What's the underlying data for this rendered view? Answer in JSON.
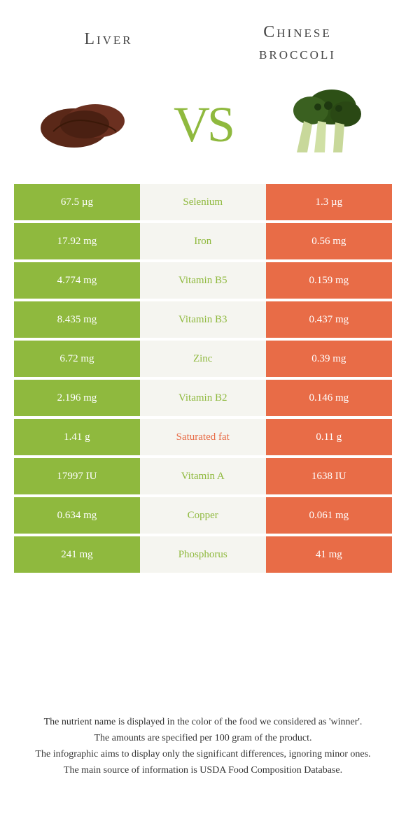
{
  "colors": {
    "left_bg": "#8fb93e",
    "right_bg": "#e86c47",
    "mid_bg": "#f5f5f0",
    "left_wins_text": "#8fb93e",
    "right_wins_text": "#e86c47",
    "vs": "#8fb93e"
  },
  "header": {
    "left_title": "Liver",
    "right_title_line1": "Chinese",
    "right_title_line2": "broccoli",
    "vs": "VS"
  },
  "rows": [
    {
      "nutrient": "Selenium",
      "left": "67.5 µg",
      "right": "1.3 µg",
      "winner": "left"
    },
    {
      "nutrient": "Iron",
      "left": "17.92 mg",
      "right": "0.56 mg",
      "winner": "left"
    },
    {
      "nutrient": "Vitamin B5",
      "left": "4.774 mg",
      "right": "0.159 mg",
      "winner": "left"
    },
    {
      "nutrient": "Vitamin B3",
      "left": "8.435 mg",
      "right": "0.437 mg",
      "winner": "left"
    },
    {
      "nutrient": "Zinc",
      "left": "6.72 mg",
      "right": "0.39 mg",
      "winner": "left"
    },
    {
      "nutrient": "Vitamin B2",
      "left": "2.196 mg",
      "right": "0.146 mg",
      "winner": "left"
    },
    {
      "nutrient": "Saturated fat",
      "left": "1.41 g",
      "right": "0.11 g",
      "winner": "right"
    },
    {
      "nutrient": "Vitamin A",
      "left": "17997 IU",
      "right": "1638 IU",
      "winner": "left"
    },
    {
      "nutrient": "Copper",
      "left": "0.634 mg",
      "right": "0.061 mg",
      "winner": "left"
    },
    {
      "nutrient": "Phosphorus",
      "left": "241 mg",
      "right": "41 mg",
      "winner": "left"
    }
  ],
  "footer": {
    "line1": "The nutrient name is displayed in the color of the food we considered as 'winner'.",
    "line2": "The amounts are specified per 100 gram of the product.",
    "line3": "The infographic aims to display only the significant differences, ignoring minor ones.",
    "line4": "The main source of information is USDA Food Composition Database."
  }
}
